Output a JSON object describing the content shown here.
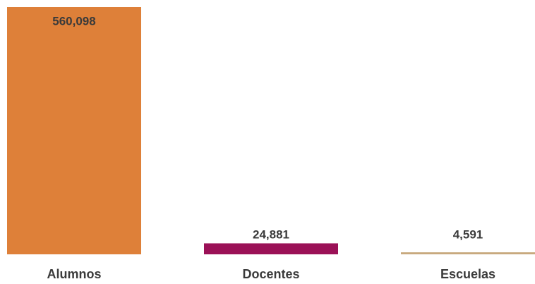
{
  "chart_data": {
    "type": "bar",
    "categories": [
      "Alumnos",
      "Docentes",
      "Escuelas"
    ],
    "values": [
      560098,
      24881,
      4591
    ],
    "value_labels": [
      "560,098",
      "24,881",
      "4,591"
    ],
    "colors": [
      "#de8039",
      "#9b1157",
      "#c8a97e"
    ]
  }
}
